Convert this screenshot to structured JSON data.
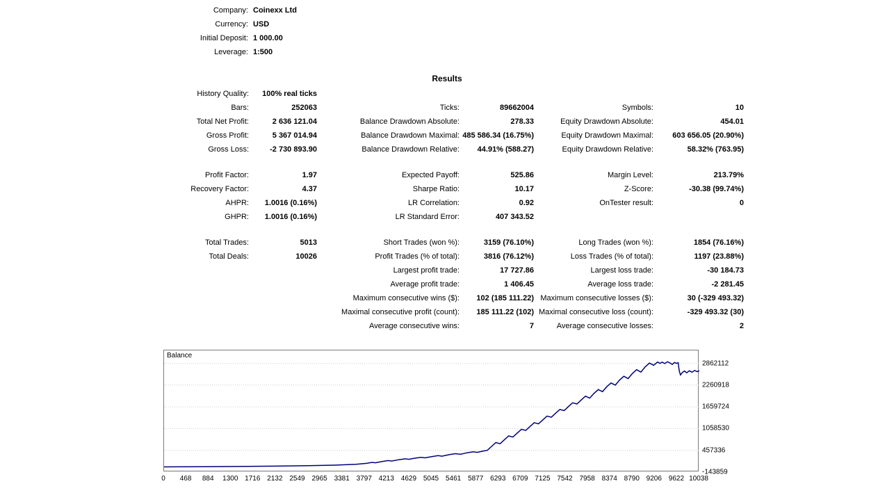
{
  "header": {
    "rows": [
      {
        "label": "Company:",
        "value": "Coinexx Ltd"
      },
      {
        "label": "Currency:",
        "value": "USD"
      },
      {
        "label": "Initial Deposit:",
        "value": "1 000.00"
      },
      {
        "label": "Leverage:",
        "value": "1:500"
      }
    ]
  },
  "results": {
    "title": "Results",
    "rows": [
      {
        "cells": [
          "History Quality:",
          "100% real ticks",
          "",
          "",
          "",
          ""
        ]
      },
      {
        "cells": [
          "Bars:",
          "252063",
          "Ticks:",
          "89662004",
          "Symbols:",
          "10"
        ]
      },
      {
        "cells": [
          "Total Net Profit:",
          "2 636 121.04",
          "Balance Drawdown Absolute:",
          "278.33",
          "Equity Drawdown Absolute:",
          "454.01"
        ]
      },
      {
        "cells": [
          "Gross Profit:",
          "5 367 014.94",
          "Balance Drawdown Maximal:",
          "485 586.34 (16.75%)",
          "Equity Drawdown Maximal:",
          "603 656.05 (20.90%)"
        ]
      },
      {
        "cells": [
          "Gross Loss:",
          "-2 730 893.90",
          "Balance Drawdown Relative:",
          "44.91% (588.27)",
          "Equity Drawdown Relative:",
          "58.32% (763.95)"
        ]
      },
      {
        "spacer": true
      },
      {
        "cells": [
          "Profit Factor:",
          "1.97",
          "Expected Payoff:",
          "525.86",
          "Margin Level:",
          "213.79%"
        ]
      },
      {
        "cells": [
          "Recovery Factor:",
          "4.37",
          "Sharpe Ratio:",
          "10.17",
          "Z-Score:",
          "-30.38 (99.74%)"
        ]
      },
      {
        "cells": [
          "AHPR:",
          "1.0016 (0.16%)",
          "LR Correlation:",
          "0.92",
          "OnTester result:",
          "0"
        ]
      },
      {
        "cells": [
          "GHPR:",
          "1.0016 (0.16%)",
          "LR Standard Error:",
          "407 343.52",
          "",
          ""
        ]
      },
      {
        "spacer": true
      },
      {
        "cells": [
          "Total Trades:",
          "5013",
          "Short Trades (won %):",
          "3159 (76.10%)",
          "Long Trades (won %):",
          "1854 (76.16%)"
        ]
      },
      {
        "cells": [
          "Total Deals:",
          "10026",
          "Profit Trades (% of total):",
          "3816 (76.12%)",
          "Loss Trades (% of total):",
          "1197 (23.88%)"
        ]
      },
      {
        "cells": [
          "",
          "",
          "Largest profit trade:",
          "17 727.86",
          "Largest loss trade:",
          "-30 184.73"
        ]
      },
      {
        "cells": [
          "",
          "",
          "Average profit trade:",
          "1 406.45",
          "Average loss trade:",
          "-2 281.45"
        ]
      },
      {
        "cells": [
          "",
          "",
          "Maximum consecutive wins ($):",
          "102 (185 111.22)",
          "Maximum consecutive losses ($):",
          "30 (-329 493.32)"
        ]
      },
      {
        "cells": [
          "",
          "",
          "Maximal consecutive profit (count):",
          "185 111.22 (102)",
          "Maximal consecutive loss (count):",
          "-329 493.32 (30)"
        ]
      },
      {
        "cells": [
          "",
          "",
          "Average consecutive wins:",
          "7",
          "Average consecutive losses:",
          "2"
        ]
      }
    ]
  },
  "chart_data": {
    "type": "line",
    "title": "Balance",
    "legend": [
      "Balance"
    ],
    "line_color": "#00007b",
    "grid": true,
    "xlim": [
      0,
      10038
    ],
    "ylim": [
      -143859,
      3218656
    ],
    "x_ticks": [
      0,
      468,
      884,
      1300,
      1716,
      2132,
      2549,
      2965,
      3381,
      3797,
      4213,
      4629,
      5045,
      5461,
      5877,
      6293,
      6709,
      7125,
      7542,
      7958,
      8374,
      8790,
      9206,
      9622,
      10038
    ],
    "y_ticks": [
      2862112,
      2260918,
      1659724,
      1058530,
      457336,
      -143859
    ],
    "points": [
      [
        0,
        1000
      ],
      [
        700,
        5000
      ],
      [
        1400,
        12000
      ],
      [
        2100,
        22000
      ],
      [
        2700,
        33000
      ],
      [
        3200,
        48000
      ],
      [
        3600,
        72000
      ],
      [
        3800,
        98000
      ],
      [
        3900,
        126000
      ],
      [
        3960,
        113000
      ],
      [
        4100,
        152000
      ],
      [
        4200,
        176000
      ],
      [
        4270,
        161000
      ],
      [
        4400,
        198000
      ],
      [
        4520,
        224000
      ],
      [
        4590,
        209000
      ],
      [
        4700,
        240000
      ],
      [
        4820,
        264000
      ],
      [
        4890,
        250000
      ],
      [
        5020,
        285000
      ],
      [
        5140,
        312000
      ],
      [
        5210,
        296000
      ],
      [
        5340,
        336000
      ],
      [
        5461,
        366000
      ],
      [
        5560,
        348000
      ],
      [
        5680,
        390000
      ],
      [
        5800,
        418000
      ],
      [
        5870,
        402000
      ],
      [
        5990,
        440000
      ],
      [
        6062,
        458000
      ],
      [
        6142,
        568000
      ],
      [
        6222,
        673000
      ],
      [
        6302,
        641000
      ],
      [
        6382,
        751000
      ],
      [
        6462,
        856000
      ],
      [
        6542,
        824000
      ],
      [
        6622,
        934000
      ],
      [
        6702,
        1039000
      ],
      [
        6782,
        1007000
      ],
      [
        6862,
        1117000
      ],
      [
        6942,
        1222000
      ],
      [
        7022,
        1190000
      ],
      [
        7102,
        1300000
      ],
      [
        7182,
        1405000
      ],
      [
        7262,
        1373000
      ],
      [
        7342,
        1483000
      ],
      [
        7422,
        1588000
      ],
      [
        7502,
        1556000
      ],
      [
        7582,
        1666000
      ],
      [
        7662,
        1771000
      ],
      [
        7742,
        1739000
      ],
      [
        7822,
        1849000
      ],
      [
        7902,
        1954000
      ],
      [
        7982,
        1900000
      ],
      [
        8062,
        2032000
      ],
      [
        8142,
        2137000
      ],
      [
        8222,
        2080000
      ],
      [
        8302,
        2215000
      ],
      [
        8382,
        2320000
      ],
      [
        8462,
        2260000
      ],
      [
        8542,
        2398000
      ],
      [
        8622,
        2503000
      ],
      [
        8702,
        2440000
      ],
      [
        8782,
        2581000
      ],
      [
        8862,
        2686000
      ],
      [
        8942,
        2620000
      ],
      [
        9022,
        2764000
      ],
      [
        9102,
        2869000
      ],
      [
        9182,
        2810000
      ],
      [
        9255,
        2898000
      ],
      [
        9300,
        2862000
      ],
      [
        9340,
        2895000
      ],
      [
        9390,
        2855000
      ],
      [
        9440,
        2905000
      ],
      [
        9490,
        2870000
      ],
      [
        9530,
        2830000
      ],
      [
        9570,
        2885000
      ],
      [
        9610,
        2862000
      ],
      [
        9640,
        2878000
      ],
      [
        9663,
        2640000
      ],
      [
        9685,
        2540000
      ],
      [
        9720,
        2610000
      ],
      [
        9760,
        2650000
      ],
      [
        9800,
        2600000
      ],
      [
        9850,
        2655000
      ],
      [
        9900,
        2615000
      ],
      [
        9950,
        2665000
      ],
      [
        10000,
        2630000
      ],
      [
        10038,
        2660000
      ]
    ]
  }
}
